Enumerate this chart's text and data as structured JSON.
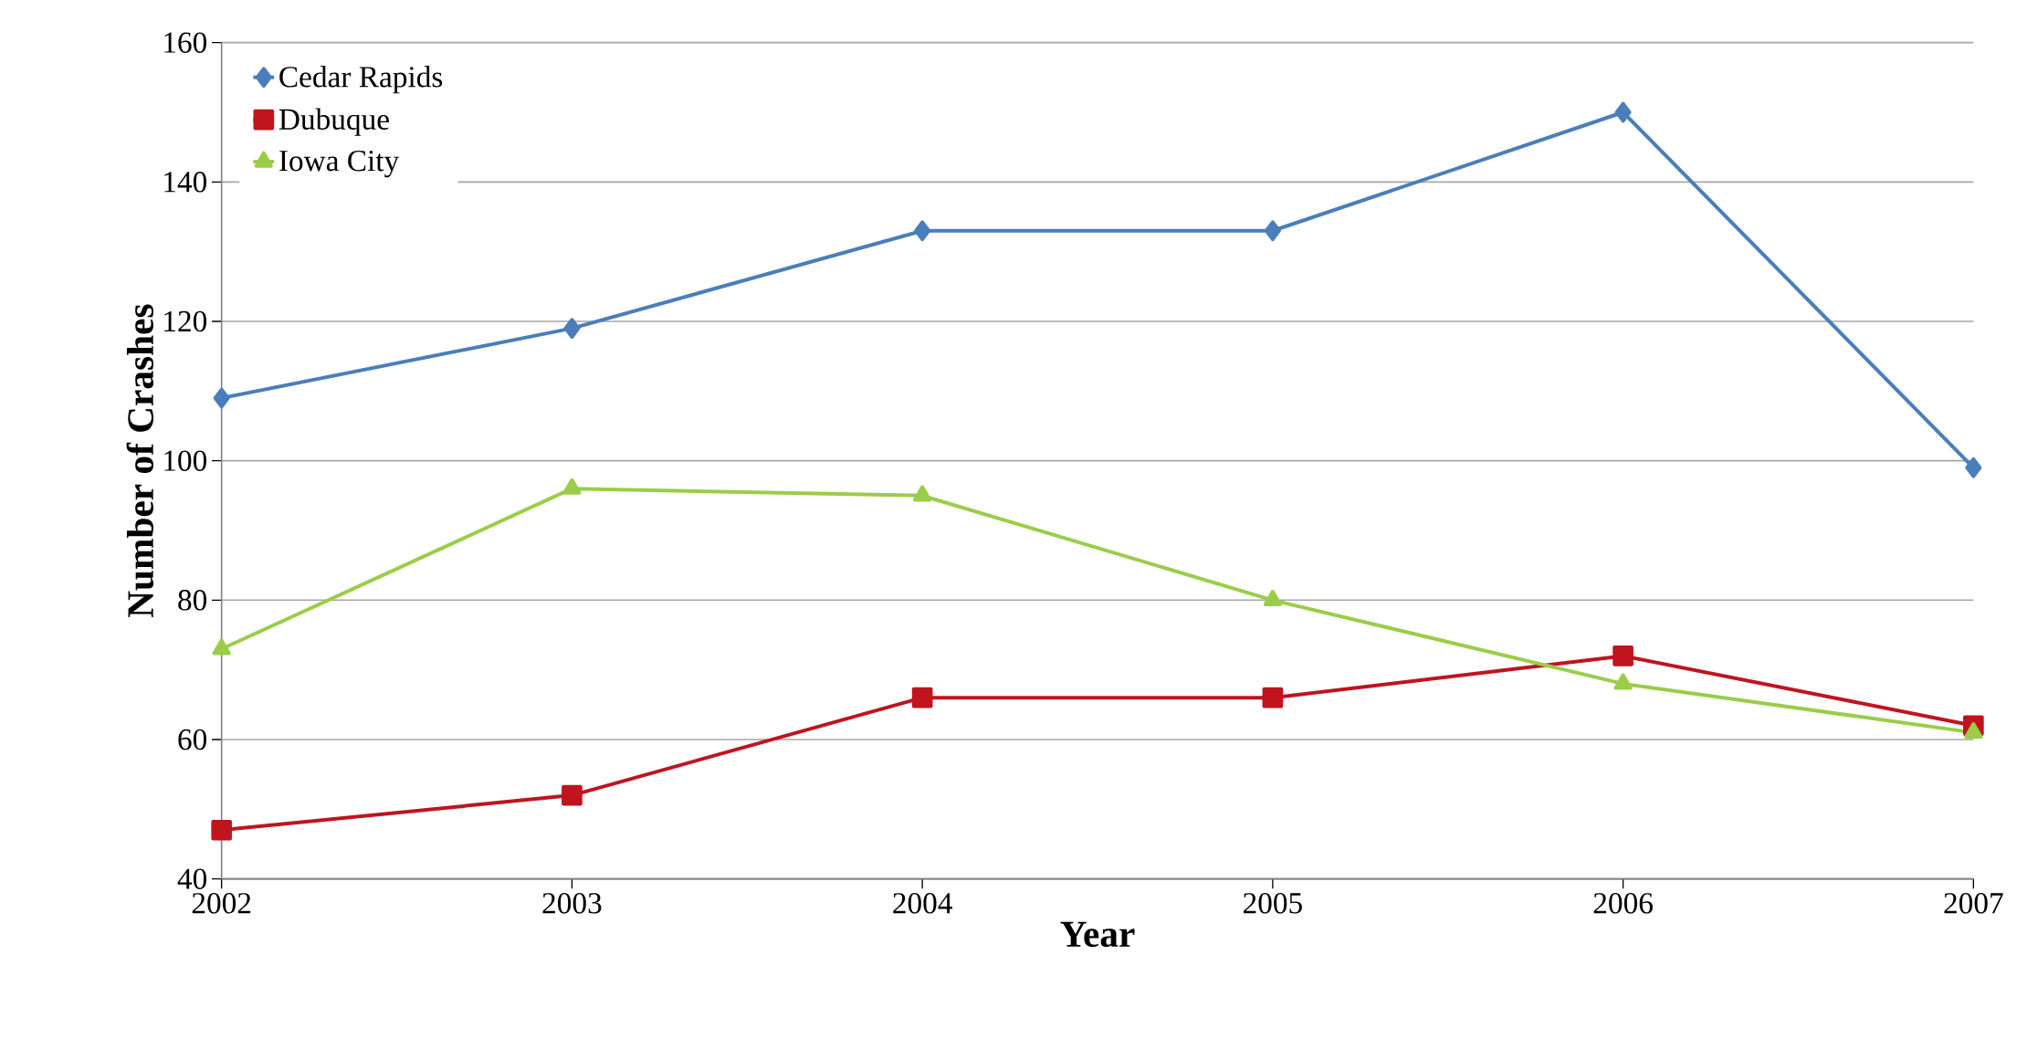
{
  "chart_data": {
    "type": "line",
    "xlabel": "Year",
    "ylabel": "Number of Crashes",
    "categories": [
      "2002",
      "2003",
      "2004",
      "2005",
      "2006",
      "2007"
    ],
    "series": [
      {
        "name": "Cedar Rapids",
        "color": "#4a7ebb",
        "marker": "diamond",
        "values": [
          109,
          119,
          133,
          133,
          150,
          99
        ]
      },
      {
        "name": "Dubuque",
        "color": "#c0141e",
        "marker": "square",
        "values": [
          47,
          52,
          66,
          66,
          72,
          62
        ]
      },
      {
        "name": "Iowa City",
        "color": "#9acd48",
        "marker": "triangle",
        "values": [
          73,
          96,
          95,
          80,
          68,
          61
        ]
      }
    ],
    "ylim": [
      40,
      160
    ],
    "yticks": [
      40,
      60,
      80,
      100,
      120,
      140,
      160
    ],
    "grid": "y",
    "legend": "top left",
    "line_style": "solid"
  }
}
